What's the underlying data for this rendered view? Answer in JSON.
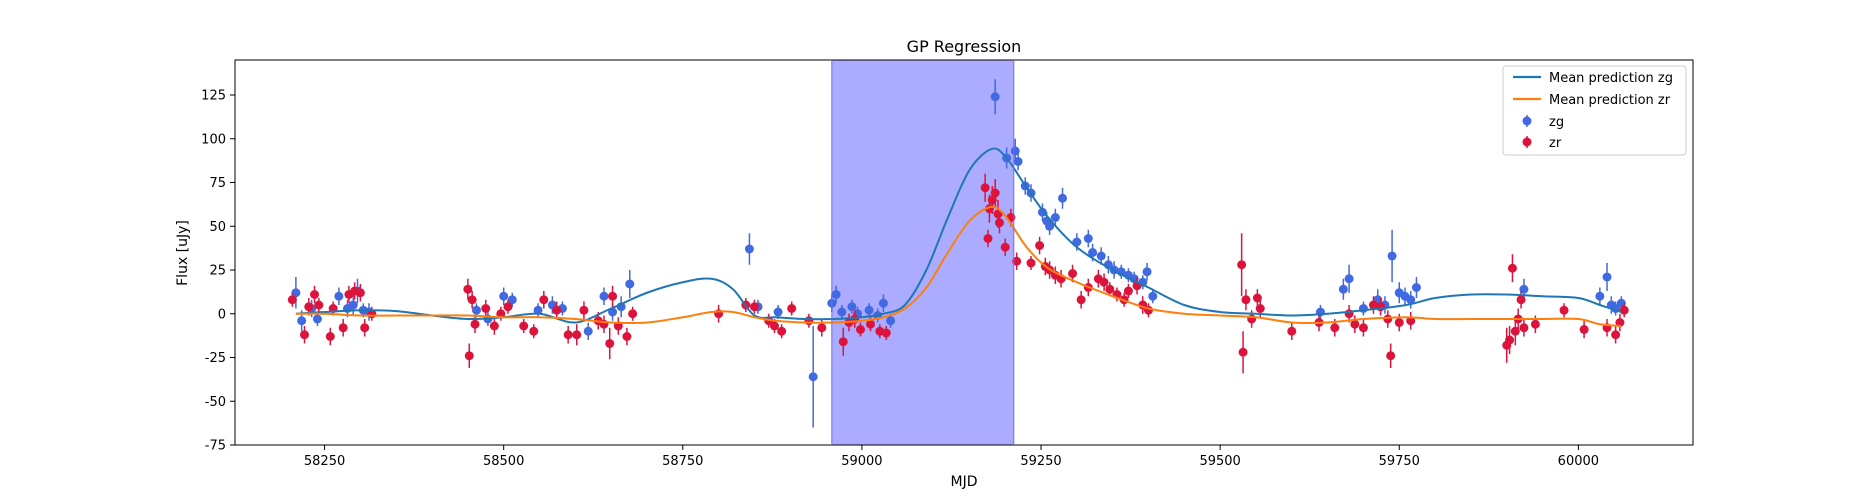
{
  "chart_data": {
    "type": "scatter",
    "title": "GP Regression",
    "xlabel": "MJD",
    "ylabel": "Flux [uJy]",
    "xlim": [
      58125,
      60160
    ],
    "ylim": [
      -75,
      145
    ],
    "xticks": [
      58250,
      58500,
      58750,
      59000,
      59250,
      59500,
      59750,
      60000
    ],
    "yticks": [
      -75,
      -50,
      -25,
      0,
      25,
      50,
      75,
      100,
      125
    ],
    "grid": false,
    "legend_position": "top-right",
    "shaded_region": {
      "x0": 58958,
      "x1": 59212,
      "color": "#a6a6ff"
    },
    "series": [
      {
        "name": "Mean prediction zg",
        "kind": "line",
        "color": "#1f77b4",
        "x": [
          58210,
          58250,
          58300,
          58350,
          58400,
          58450,
          58500,
          58550,
          58600,
          58650,
          58700,
          58750,
          58790,
          58820,
          58850,
          58880,
          58920,
          58960,
          59000,
          59030,
          59060,
          59090,
          59120,
          59150,
          59180,
          59200,
          59230,
          59260,
          59300,
          59350,
          59400,
          59450,
          59500,
          59550,
          59600,
          59650,
          59700,
          59760,
          59800,
          59850,
          59900,
          59950,
          60000,
          60030,
          60060
        ],
        "y": [
          0,
          1,
          2,
          1.5,
          -1,
          -3,
          -2,
          0,
          -5,
          3,
          12,
          18,
          20,
          14,
          -1,
          -2,
          -3,
          -3,
          -2,
          0,
          5,
          25,
          55,
          82,
          94,
          90,
          72,
          55,
          38,
          25,
          15,
          5,
          1,
          0,
          -1,
          0,
          2,
          5,
          9,
          11,
          11,
          10,
          9,
          5,
          1
        ]
      },
      {
        "name": "Mean prediction zr",
        "kind": "line",
        "color": "#ff7f0e",
        "x": [
          58210,
          58250,
          58300,
          58350,
          58400,
          58450,
          58500,
          58550,
          58600,
          58650,
          58700,
          58750,
          58790,
          58820,
          58850,
          58880,
          58920,
          58960,
          59000,
          59030,
          59060,
          59090,
          59120,
          59150,
          59180,
          59200,
          59230,
          59260,
          59300,
          59350,
          59400,
          59450,
          59500,
          59550,
          59600,
          59650,
          59700,
          59760,
          59800,
          59850,
          59900,
          59950,
          60000,
          60030,
          60060
        ],
        "y": [
          0,
          0,
          -1,
          -1,
          -1,
          -1,
          -2,
          -2,
          -3,
          -5,
          -5,
          -2,
          1,
          1,
          -2,
          -4,
          -5,
          -5,
          -4,
          -2,
          3,
          15,
          35,
          53,
          61,
          56,
          38,
          26,
          18,
          10,
          3,
          0,
          -1,
          -2,
          -5,
          -5,
          -3,
          -2,
          -3,
          -3,
          -3,
          -3,
          -3,
          -6,
          -7
        ]
      },
      {
        "name": "zg",
        "kind": "errorbar",
        "color": "#4169e1",
        "points": [
          [
            58210,
            12,
            9
          ],
          [
            58218,
            -4,
            6
          ],
          [
            58232,
            3,
            5
          ],
          [
            58240,
            -3,
            4
          ],
          [
            58270,
            10,
            5
          ],
          [
            58282,
            3,
            5
          ],
          [
            58290,
            5,
            6
          ],
          [
            58296,
            13,
            7
          ],
          [
            58304,
            2,
            4
          ],
          [
            58312,
            1,
            5
          ],
          [
            58462,
            2,
            4
          ],
          [
            58478,
            -3,
            4
          ],
          [
            58500,
            10,
            5
          ],
          [
            58512,
            8,
            4
          ],
          [
            58548,
            2,
            4
          ],
          [
            58568,
            5,
            5
          ],
          [
            58582,
            3,
            4
          ],
          [
            58618,
            -10,
            5
          ],
          [
            58640,
            10,
            5
          ],
          [
            58652,
            1,
            5
          ],
          [
            58664,
            4,
            6
          ],
          [
            58676,
            17,
            8
          ],
          [
            58843,
            37,
            9
          ],
          [
            58855,
            4,
            4
          ],
          [
            58883,
            1,
            4
          ],
          [
            58932,
            -36,
            29
          ],
          [
            58958,
            6,
            5
          ],
          [
            58964,
            11,
            5
          ],
          [
            58972,
            1,
            4
          ],
          [
            58986,
            4,
            4
          ],
          [
            58994,
            0,
            4
          ],
          [
            59010,
            2,
            4
          ],
          [
            59022,
            -1,
            4
          ],
          [
            59030,
            6,
            5
          ],
          [
            59040,
            -4,
            4
          ],
          [
            59186,
            124,
            10
          ],
          [
            59202,
            89,
            6
          ],
          [
            59214,
            93,
            7
          ],
          [
            59218,
            87,
            5
          ],
          [
            59228,
            73,
            5
          ],
          [
            59236,
            69,
            5
          ],
          [
            59252,
            58,
            5
          ],
          [
            59258,
            53,
            5
          ],
          [
            59262,
            50,
            5
          ],
          [
            59270,
            55,
            5
          ],
          [
            59280,
            66,
            6
          ],
          [
            59300,
            41,
            5
          ],
          [
            59316,
            43,
            5
          ],
          [
            59322,
            35,
            5
          ],
          [
            59334,
            33,
            5
          ],
          [
            59344,
            28,
            5
          ],
          [
            59352,
            25,
            5
          ],
          [
            59362,
            24,
            4
          ],
          [
            59372,
            22,
            4
          ],
          [
            59380,
            20,
            4
          ],
          [
            59392,
            18,
            4
          ],
          [
            59398,
            24,
            5
          ],
          [
            59406,
            10,
            4
          ],
          [
            59640,
            1,
            4
          ],
          [
            59672,
            14,
            6
          ],
          [
            59680,
            20,
            8
          ],
          [
            59700,
            3,
            4
          ],
          [
            59720,
            8,
            6
          ],
          [
            59730,
            5,
            5
          ],
          [
            59740,
            33,
            15
          ],
          [
            59750,
            12,
            6
          ],
          [
            59758,
            10,
            5
          ],
          [
            59766,
            8,
            5
          ],
          [
            59774,
            15,
            6
          ],
          [
            59924,
            14,
            6
          ],
          [
            60030,
            10,
            5
          ],
          [
            60040,
            21,
            8
          ],
          [
            60046,
            5,
            5
          ],
          [
            60052,
            3,
            4
          ],
          [
            60060,
            6,
            4
          ]
        ]
      },
      {
        "name": "zr",
        "kind": "errorbar",
        "color": "#dc143c",
        "points": [
          [
            58205,
            8,
            4
          ],
          [
            58222,
            -12,
            5
          ],
          [
            58228,
            4,
            5
          ],
          [
            58236,
            11,
            5
          ],
          [
            58242,
            5,
            4
          ],
          [
            58258,
            -13,
            5
          ],
          [
            58262,
            3,
            4
          ],
          [
            58276,
            -8,
            5
          ],
          [
            58284,
            11,
            5
          ],
          [
            58292,
            13,
            5
          ],
          [
            58300,
            12,
            5
          ],
          [
            58306,
            -8,
            5
          ],
          [
            58316,
            0,
            4
          ],
          [
            58450,
            14,
            6
          ],
          [
            58452,
            -24,
            7
          ],
          [
            58456,
            8,
            5
          ],
          [
            58460,
            -6,
            5
          ],
          [
            58475,
            3,
            5
          ],
          [
            58487,
            -7,
            5
          ],
          [
            58496,
            0,
            4
          ],
          [
            58506,
            4,
            4
          ],
          [
            58528,
            -7,
            4
          ],
          [
            58542,
            -10,
            4
          ],
          [
            58556,
            8,
            5
          ],
          [
            58574,
            2,
            5
          ],
          [
            58590,
            -12,
            5
          ],
          [
            58602,
            -12,
            6
          ],
          [
            58612,
            2,
            5
          ],
          [
            58632,
            -4,
            5
          ],
          [
            58640,
            -6,
            5
          ],
          [
            58648,
            -17,
            9
          ],
          [
            58652,
            10,
            6
          ],
          [
            58660,
            -7,
            5
          ],
          [
            58672,
            -13,
            5
          ],
          [
            58680,
            0,
            4
          ],
          [
            58800,
            0,
            5
          ],
          [
            58838,
            5,
            4
          ],
          [
            58850,
            4,
            4
          ],
          [
            58870,
            -4,
            4
          ],
          [
            58878,
            -7,
            4
          ],
          [
            58888,
            -10,
            4
          ],
          [
            58902,
            3,
            4
          ],
          [
            58926,
            -4,
            4
          ],
          [
            58944,
            -8,
            5
          ],
          [
            58974,
            -16,
            8
          ],
          [
            58982,
            -5,
            5
          ],
          [
            58990,
            -3,
            5
          ],
          [
            58998,
            -9,
            4
          ],
          [
            59012,
            -6,
            4
          ],
          [
            59025,
            -10,
            4
          ],
          [
            59034,
            -11,
            4
          ],
          [
            59172,
            72,
            8
          ],
          [
            59178,
            60,
            8
          ],
          [
            59182,
            65,
            8
          ],
          [
            59186,
            69,
            8
          ],
          [
            59190,
            57,
            8
          ],
          [
            59176,
            43,
            5
          ],
          [
            59192,
            52,
            6
          ],
          [
            59200,
            38,
            5
          ],
          [
            59208,
            55,
            5
          ],
          [
            59216,
            30,
            5
          ],
          [
            59236,
            29,
            4
          ],
          [
            59248,
            39,
            5
          ],
          [
            59256,
            27,
            5
          ],
          [
            59262,
            25,
            5
          ],
          [
            59270,
            22,
            5
          ],
          [
            59278,
            20,
            5
          ],
          [
            59294,
            23,
            5
          ],
          [
            59306,
            8,
            5
          ],
          [
            59316,
            15,
            5
          ],
          [
            59330,
            20,
            5
          ],
          [
            59338,
            18,
            5
          ],
          [
            59346,
            14,
            4
          ],
          [
            59356,
            11,
            4
          ],
          [
            59366,
            8,
            4
          ],
          [
            59372,
            13,
            4
          ],
          [
            59384,
            16,
            5
          ],
          [
            59392,
            5,
            5
          ],
          [
            59400,
            2,
            4
          ],
          [
            59530,
            28,
            18
          ],
          [
            59532,
            -22,
            12
          ],
          [
            59536,
            8,
            6
          ],
          [
            59544,
            -3,
            5
          ],
          [
            59552,
            9,
            5
          ],
          [
            59556,
            3,
            5
          ],
          [
            59600,
            -10,
            5
          ],
          [
            59638,
            -5,
            5
          ],
          [
            59660,
            -8,
            5
          ],
          [
            59680,
            0,
            5
          ],
          [
            59688,
            -6,
            5
          ],
          [
            59700,
            -8,
            5
          ],
          [
            59714,
            5,
            5
          ],
          [
            59724,
            4,
            5
          ],
          [
            59734,
            -3,
            5
          ],
          [
            59738,
            -24,
            7
          ],
          [
            59750,
            -5,
            5
          ],
          [
            59766,
            -4,
            5
          ],
          [
            59900,
            -18,
            10
          ],
          [
            59904,
            -15,
            8
          ],
          [
            59908,
            26,
            8
          ],
          [
            59912,
            -10,
            8
          ],
          [
            59916,
            -3,
            6
          ],
          [
            59920,
            8,
            5
          ],
          [
            59924,
            -8,
            5
          ],
          [
            59940,
            -6,
            5
          ],
          [
            59980,
            2,
            4
          ],
          [
            60008,
            -9,
            5
          ],
          [
            60040,
            -8,
            5
          ],
          [
            60052,
            -12,
            5
          ],
          [
            60058,
            -5,
            5
          ],
          [
            60064,
            2,
            4
          ]
        ]
      }
    ],
    "legend": {
      "entries": [
        "Mean prediction zg",
        "Mean prediction zr",
        "zg",
        "zr"
      ]
    }
  }
}
